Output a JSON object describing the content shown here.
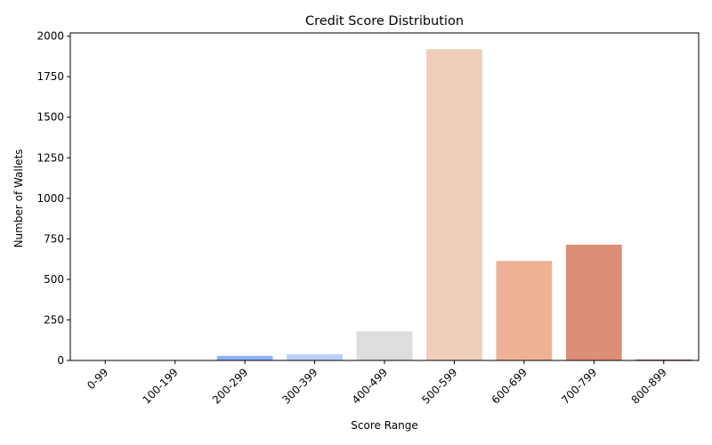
{
  "chart_data": {
    "type": "bar",
    "title": "Credit Score Distribution",
    "xlabel": "Score Range",
    "ylabel": "Number of Wallets",
    "categories": [
      "0-99",
      "100-199",
      "200-299",
      "300-399",
      "400-499",
      "500-599",
      "600-699",
      "700-799",
      "800-899"
    ],
    "values": [
      2,
      1,
      28,
      38,
      180,
      1920,
      614,
      714,
      5
    ],
    "colors": [
      "#3b4cc0",
      "#6282ea",
      "#8db0fe",
      "#b8d0f9",
      "#dcdddd",
      "#f0cdbb",
      "#edb295",
      "#dc8e76",
      "#b40426"
    ],
    "ylim": [
      0,
      2020
    ],
    "yticks": [
      0,
      250,
      500,
      750,
      1000,
      1250,
      1500,
      1750,
      2000
    ],
    "grid": false,
    "xtick_rotation": 45
  }
}
